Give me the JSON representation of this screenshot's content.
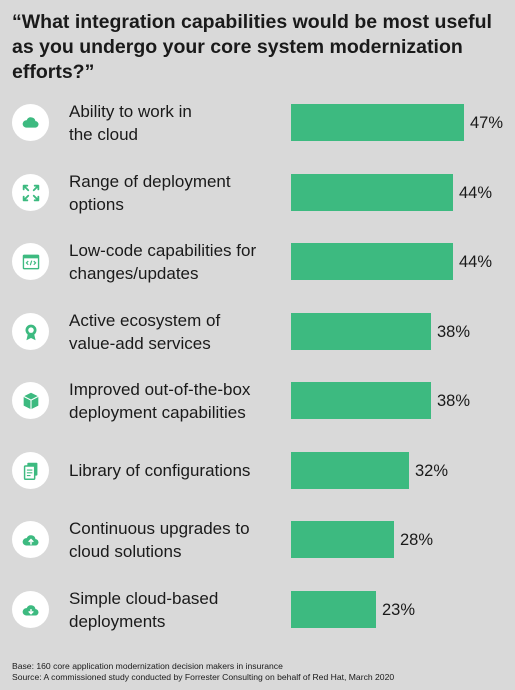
{
  "chart_data": {
    "type": "bar",
    "orientation": "horizontal",
    "title": "“What integration capabilities would be most useful as you undergo your core system modernization efforts?”",
    "categories": [
      "Ability to work in the cloud",
      "Range of deployment options",
      "Low-code capabilities for changes/updates",
      "Active ecosystem of value-add services",
      "Improved out-of-the-box deployment capabilities",
      "Library of configurations",
      "Continuous upgrades to cloud solutions",
      "Simple cloud-based deployments"
    ],
    "values": [
      47,
      44,
      44,
      38,
      38,
      32,
      28,
      23
    ],
    "data_labels": [
      "47%",
      "44%",
      "44%",
      "38%",
      "38%",
      "32%",
      "28%",
      "23%"
    ],
    "unit": "%",
    "xlim": [
      0,
      47
    ],
    "grid": false,
    "bar_color": "#3dba80",
    "icon_color": "#3dba80"
  },
  "rows": [
    {
      "label_lines": [
        "Ability to work in",
        "the cloud"
      ],
      "icon": "cloud-icon"
    },
    {
      "label_lines": [
        "Range of deployment",
        "options"
      ],
      "icon": "expand-arrows-icon"
    },
    {
      "label_lines": [
        "Low-code capabilities for",
        "changes/updates"
      ],
      "icon": "code-window-icon"
    },
    {
      "label_lines": [
        "Active ecosystem of",
        "value-add services"
      ],
      "icon": "award-badge-icon"
    },
    {
      "label_lines": [
        "Improved out-of-the-box",
        "deployment capabilities"
      ],
      "icon": "box-icon"
    },
    {
      "label_lines": [
        "Library of configurations"
      ],
      "icon": "documents-icon"
    },
    {
      "label_lines": [
        "Continuous upgrades to",
        "cloud solutions"
      ],
      "icon": "cloud-upload-icon"
    },
    {
      "label_lines": [
        "Simple cloud-based",
        "deployments"
      ],
      "icon": "cloud-download-icon"
    }
  ],
  "footer": {
    "base": "Base: 160 core application modernization decision makers in insurance",
    "source": "Source: A commissioned study conducted by Forrester Consulting on behalf of Red Hat, March 2020"
  }
}
